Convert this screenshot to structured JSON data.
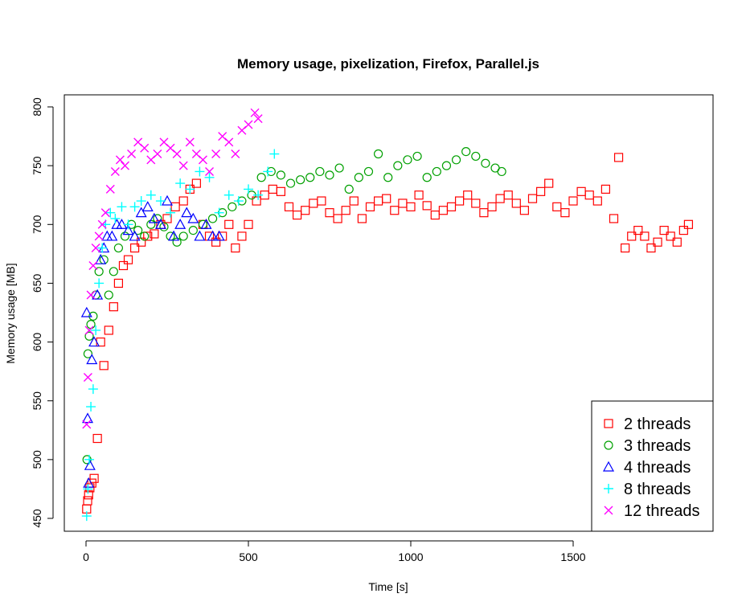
{
  "chart_data": {
    "type": "scatter",
    "title": "Memory usage, pixelization, Firefox, Parallel.js",
    "xlabel": "Time [s]",
    "ylabel": "Memory usage [MB]",
    "xlim": [
      0,
      1900
    ],
    "ylim": [
      450,
      800
    ],
    "x_ticks": [
      0,
      500,
      1000,
      1500
    ],
    "y_ticks": [
      450,
      500,
      550,
      600,
      650,
      700,
      750,
      800
    ],
    "grid": false,
    "legend_position": "bottom-right",
    "series": [
      {
        "name": "2 threads",
        "marker": "square",
        "color": "#ff0000",
        "x": [
          2,
          5,
          8,
          12,
          18,
          25,
          35,
          45,
          55,
          70,
          85,
          100,
          115,
          130,
          150,
          170,
          190,
          210,
          230,
          250,
          275,
          300,
          320,
          340,
          360,
          380,
          400,
          420,
          440,
          460,
          480,
          500,
          525,
          550,
          575,
          600,
          625,
          650,
          675,
          700,
          725,
          750,
          775,
          800,
          825,
          850,
          875,
          900,
          925,
          950,
          975,
          1000,
          1025,
          1050,
          1075,
          1100,
          1125,
          1150,
          1175,
          1200,
          1225,
          1250,
          1275,
          1300,
          1325,
          1350,
          1375,
          1400,
          1425,
          1450,
          1475,
          1500,
          1525,
          1550,
          1575,
          1600,
          1625,
          1640,
          1660,
          1680,
          1700,
          1720,
          1740,
          1760,
          1780,
          1800,
          1820,
          1840,
          1855
        ],
        "y": [
          458,
          465,
          470,
          476,
          480,
          484,
          518,
          600,
          580,
          610,
          630,
          650,
          665,
          670,
          680,
          685,
          690,
          692,
          700,
          705,
          715,
          720,
          730,
          735,
          700,
          690,
          685,
          690,
          700,
          680,
          690,
          700,
          720,
          725,
          730,
          728,
          715,
          708,
          712,
          718,
          720,
          710,
          705,
          712,
          720,
          705,
          715,
          720,
          722,
          712,
          718,
          715,
          725,
          716,
          708,
          712,
          715,
          720,
          725,
          718,
          710,
          715,
          722,
          725,
          718,
          712,
          722,
          728,
          735,
          715,
          710,
          720,
          728,
          725,
          720,
          730,
          705,
          757,
          680,
          690,
          695,
          690,
          680,
          685,
          695,
          690,
          685,
          695,
          700
        ]
      },
      {
        "name": "3 threads",
        "marker": "circle",
        "color": "#00a000",
        "x": [
          3,
          6,
          10,
          15,
          22,
          30,
          40,
          55,
          70,
          85,
          100,
          120,
          140,
          160,
          180,
          200,
          220,
          240,
          260,
          280,
          300,
          330,
          360,
          390,
          420,
          450,
          480,
          510,
          540,
          570,
          600,
          630,
          660,
          690,
          720,
          750,
          780,
          810,
          840,
          870,
          900,
          930,
          960,
          990,
          1020,
          1050,
          1080,
          1110,
          1140,
          1170,
          1200,
          1230,
          1260,
          1280
        ],
        "y": [
          500,
          590,
          605,
          615,
          622,
          640,
          660,
          670,
          640,
          660,
          680,
          690,
          700,
          695,
          690,
          700,
          705,
          698,
          690,
          685,
          690,
          695,
          700,
          705,
          710,
          715,
          720,
          725,
          740,
          745,
          742,
          735,
          738,
          740,
          745,
          742,
          748,
          730,
          740,
          745,
          760,
          740,
          750,
          755,
          758,
          740,
          745,
          750,
          755,
          762,
          758,
          752,
          748,
          745
        ]
      },
      {
        "name": "4 threads",
        "marker": "triangle",
        "color": "#0000ff",
        "x": [
          2,
          5,
          8,
          12,
          18,
          25,
          35,
          45,
          55,
          65,
          80,
          95,
          110,
          130,
          150,
          170,
          190,
          210,
          230,
          250,
          270,
          290,
          310,
          330,
          350,
          370,
          390,
          410
        ],
        "y": [
          625,
          535,
          480,
          495,
          585,
          600,
          640,
          670,
          680,
          690,
          690,
          700,
          700,
          695,
          690,
          710,
          715,
          705,
          700,
          720,
          690,
          700,
          710,
          705,
          690,
          700,
          690,
          690
        ]
      },
      {
        "name": "8 threads",
        "marker": "plus",
        "color": "#00ffff",
        "x": [
          2,
          6,
          10,
          15,
          22,
          30,
          40,
          50,
          60,
          75,
          90,
          110,
          130,
          150,
          170,
          200,
          230,
          260,
          290,
          320,
          350,
          380,
          410,
          440,
          470,
          500,
          530,
          560,
          580
        ],
        "y": [
          452,
          475,
          500,
          545,
          560,
          610,
          650,
          680,
          700,
          710,
          705,
          715,
          700,
          715,
          720,
          725,
          720,
          710,
          735,
          730,
          745,
          740,
          710,
          725,
          720,
          730,
          725,
          745,
          760
        ]
      },
      {
        "name": "12 threads",
        "marker": "cross",
        "color": "#ff00ff",
        "x": [
          2,
          6,
          10,
          15,
          22,
          30,
          40,
          50,
          60,
          75,
          90,
          105,
          120,
          140,
          160,
          180,
          200,
          220,
          240,
          260,
          280,
          300,
          320,
          340,
          360,
          380,
          400,
          420,
          440,
          460,
          480,
          500,
          520,
          530
        ],
        "y": [
          530,
          570,
          610,
          640,
          665,
          680,
          690,
          700,
          710,
          730,
          745,
          755,
          750,
          760,
          770,
          765,
          755,
          760,
          770,
          765,
          760,
          750,
          770,
          760,
          755,
          745,
          760,
          775,
          770,
          760,
          780,
          785,
          795,
          790
        ]
      }
    ]
  }
}
